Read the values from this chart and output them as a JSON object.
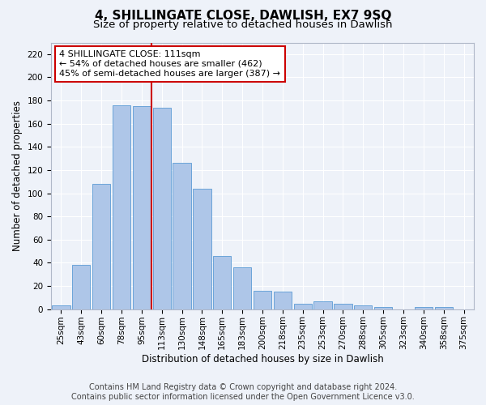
{
  "title": "4, SHILLINGATE CLOSE, DAWLISH, EX7 9SQ",
  "subtitle": "Size of property relative to detached houses in Dawlish",
  "xlabel": "Distribution of detached houses by size in Dawlish",
  "ylabel": "Number of detached properties",
  "bar_labels": [
    "25sqm",
    "43sqm",
    "60sqm",
    "78sqm",
    "95sqm",
    "113sqm",
    "130sqm",
    "148sqm",
    "165sqm",
    "183sqm",
    "200sqm",
    "218sqm",
    "235sqm",
    "253sqm",
    "270sqm",
    "288sqm",
    "305sqm",
    "323sqm",
    "340sqm",
    "358sqm",
    "375sqm"
  ],
  "bar_values": [
    3,
    38,
    108,
    176,
    175,
    174,
    126,
    104,
    46,
    36,
    16,
    15,
    5,
    7,
    5,
    3,
    2,
    0,
    2,
    2,
    0
  ],
  "bar_color": "#aec6e8",
  "bar_edge_color": "#5b9bd5",
  "vline_index": 5,
  "vline_color": "#cc0000",
  "annotation_line1": "4 SHILLINGATE CLOSE: 111sqm",
  "annotation_line2": "← 54% of detached houses are smaller (462)",
  "annotation_line3": "45% of semi-detached houses are larger (387) →",
  "annotation_box_color": "#ffffff",
  "annotation_box_edge": "#cc0000",
  "ylim": [
    0,
    230
  ],
  "yticks": [
    0,
    20,
    40,
    60,
    80,
    100,
    120,
    140,
    160,
    180,
    200,
    220
  ],
  "footer_line1": "Contains HM Land Registry data © Crown copyright and database right 2024.",
  "footer_line2": "Contains public sector information licensed under the Open Government Licence v3.0.",
  "background_color": "#eef2f9",
  "grid_color": "#ffffff",
  "title_fontsize": 11,
  "subtitle_fontsize": 9.5,
  "axis_label_fontsize": 8.5,
  "tick_fontsize": 7.5,
  "annotation_fontsize": 8,
  "footer_fontsize": 7
}
